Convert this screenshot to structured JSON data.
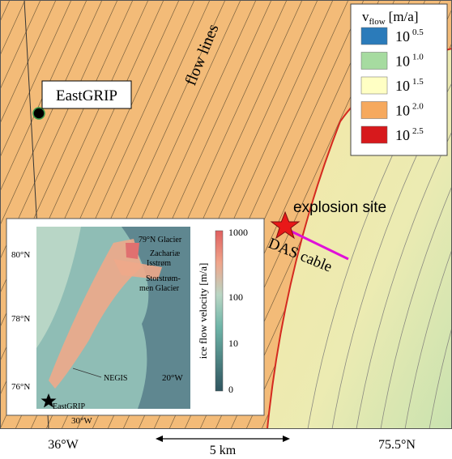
{
  "legend": {
    "title": {
      "symbol": "v",
      "subscript": "flow",
      "unit": "[m/a]"
    },
    "entries": [
      {
        "base": "10",
        "exponent": "0.5",
        "color": "#2b7bba"
      },
      {
        "base": "10",
        "exponent": "1.0",
        "color": "#a6dba0"
      },
      {
        "base": "10",
        "exponent": "1.5",
        "color": "#ffffc4"
      },
      {
        "base": "10",
        "exponent": "2.0",
        "color": "#f6a95e"
      },
      {
        "base": "10",
        "exponent": "2.5",
        "color": "#d7191c"
      }
    ]
  },
  "map_labels": {
    "flow_lines": "flow lines",
    "eastgrip": "EastGRIP",
    "explosion_site": "explosion site",
    "das_cable": "DAS cable"
  },
  "axis_labels": {
    "left": "36°W",
    "right": "75.5°N",
    "scale": "5 km"
  },
  "inset": {
    "labels": [
      "79°N Glacier",
      "Zachariæ",
      "Isstrøm",
      "Storstrøm-",
      "men Glacier",
      "NEGIS",
      "EastGRIP"
    ],
    "lat_labels": [
      "80°N",
      "78°N",
      "76°N"
    ],
    "lon_labels": [
      "30°W",
      "20°W"
    ],
    "colorbar": {
      "label": "ice flow velocity [m/a]",
      "ticks": [
        "1000",
        "100",
        "10",
        "0"
      ]
    }
  }
}
